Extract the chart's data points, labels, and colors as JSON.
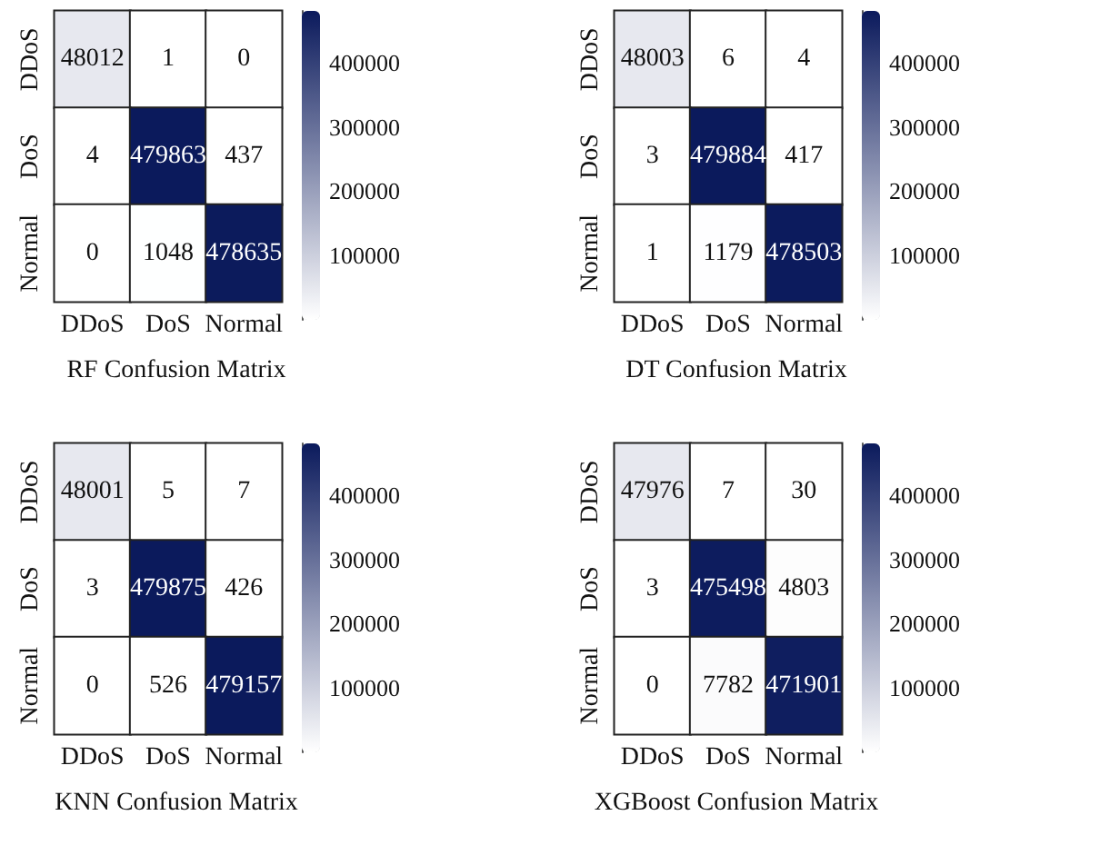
{
  "chart_data": [
    {
      "type": "heatmap",
      "data_labels": true,
      "title": "RF Confusion Matrix",
      "categories": [
        "DDoS",
        "DoS",
        "Normal"
      ],
      "y_categories": [
        "DDoS",
        "DoS",
        "Normal"
      ],
      "cells": [
        [
          48012,
          1,
          0
        ],
        [
          4,
          479863,
          437
        ],
        [
          0,
          1048,
          478635
        ]
      ],
      "clim": [
        0,
        480000
      ],
      "cticks": [
        100000,
        200000,
        300000,
        400000
      ],
      "colors": [
        "#ffffff",
        "#0b1a5c"
      ]
    },
    {
      "type": "heatmap",
      "data_labels": true,
      "title": "DT Confusion Matrix",
      "categories": [
        "DDoS",
        "DoS",
        "Normal"
      ],
      "y_categories": [
        "DDoS",
        "DoS",
        "Normal"
      ],
      "cells": [
        [
          48003,
          6,
          4
        ],
        [
          3,
          479884,
          417
        ],
        [
          1,
          1179,
          478503
        ]
      ],
      "clim": [
        0,
        480000
      ],
      "cticks": [
        100000,
        200000,
        300000,
        400000
      ],
      "colors": [
        "#ffffff",
        "#0b1a5c"
      ]
    },
    {
      "type": "heatmap",
      "data_labels": true,
      "title": "KNN Confusion Matrix",
      "categories": [
        "DDoS",
        "DoS",
        "Normal"
      ],
      "y_categories": [
        "DDoS",
        "DoS",
        "Normal"
      ],
      "cells": [
        [
          48001,
          5,
          7
        ],
        [
          3,
          479875,
          426
        ],
        [
          0,
          526,
          479157
        ]
      ],
      "clim": [
        0,
        480000
      ],
      "cticks": [
        100000,
        200000,
        300000,
        400000
      ],
      "colors": [
        "#ffffff",
        "#0b1a5c"
      ]
    },
    {
      "type": "heatmap",
      "data_labels": true,
      "title": "XGBoost Confusion Matrix",
      "categories": [
        "DDoS",
        "DoS",
        "Normal"
      ],
      "y_categories": [
        "DDoS",
        "DoS",
        "Normal"
      ],
      "cells": [
        [
          47976,
          7,
          30
        ],
        [
          3,
          475498,
          4803
        ],
        [
          0,
          7782,
          471901
        ]
      ],
      "clim": [
        0,
        480000
      ],
      "cticks": [
        100000,
        200000,
        300000,
        400000
      ],
      "colors": [
        "#ffffff",
        "#0b1a5c"
      ]
    }
  ]
}
